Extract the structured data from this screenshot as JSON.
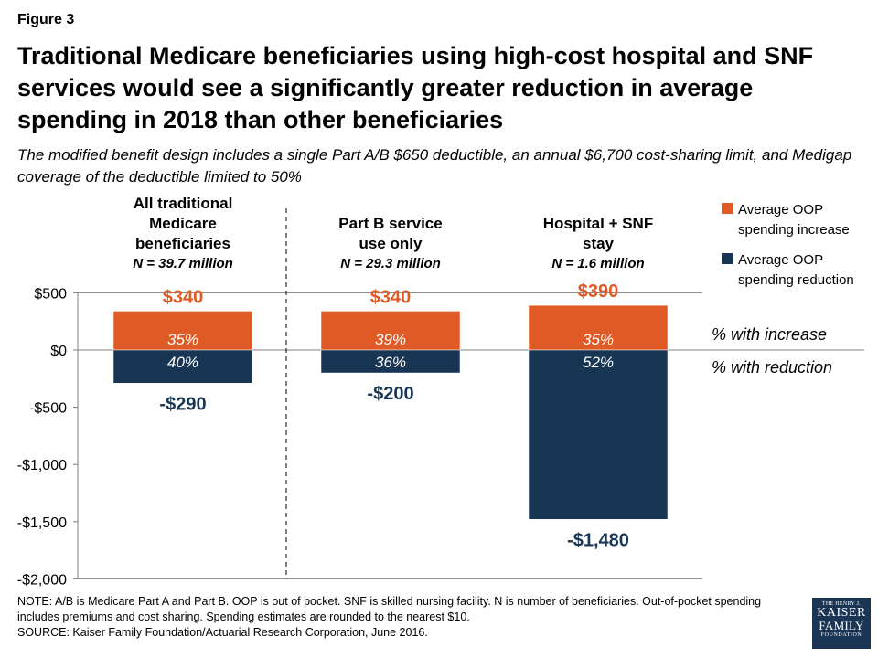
{
  "figure_label": "Figure 3",
  "title": "Traditional Medicare beneficiaries using high-cost hospital and SNF services would see a significantly greater reduction in average spending in 2018 than other beneficiaries",
  "subtitle": "The modified benefit design includes a single Part A/B $650 deductible, an annual $6,700 cost-sharing limit, and Medigap coverage of the deductible limited to 50%",
  "note": "NOTE: A/B is Medicare Part A and Part B. OOP is out of pocket. SNF is skilled nursing facility. N is number of beneficiaries. Out-of-pocket spending includes premiums and cost sharing. Spending estimates are rounded to the nearest $10.",
  "source": "SOURCE: Kaiser Family Foundation/Actuarial Research Corporation, June 2016.",
  "logo": {
    "line1": "THE HENRY J.",
    "line2": "KAISER",
    "line3": "FAMILY",
    "line4": "FOUNDATION"
  },
  "colors": {
    "increase": "#e05a26",
    "reduction": "#183554",
    "text": "#000000",
    "axis": "#7f7f7f"
  },
  "chart_data": {
    "type": "bar",
    "stacked": true,
    "categories": [
      {
        "lines": [
          "All traditional",
          "Medicare",
          "beneficiaries"
        ],
        "n": "N = 39.7 million"
      },
      {
        "lines": [
          "Part B service",
          "use only"
        ],
        "n": "N = 29.3 million"
      },
      {
        "lines": [
          "Hospital + SNF",
          "stay"
        ],
        "n": "N = 1.6 million"
      }
    ],
    "series": [
      {
        "name": "Average OOP spending increase",
        "legend_lines": [
          "Average OOP",
          "spending increase"
        ],
        "values": [
          340,
          340,
          390
        ],
        "value_labels": [
          "$340",
          "$340",
          "$390"
        ],
        "pct_labels": [
          "35%",
          "39%",
          "35%"
        ]
      },
      {
        "name": "Average OOP spending reduction",
        "legend_lines": [
          "Average OOP",
          "spending reduction"
        ],
        "values": [
          -290,
          -200,
          -1480
        ],
        "value_labels": [
          "-$290",
          "-$200",
          "-$1,480"
        ],
        "pct_labels": [
          "40%",
          "36%",
          "52%"
        ]
      }
    ],
    "row_annotations": [
      "% with increase",
      "% with reduction"
    ],
    "ylim": [
      -2000,
      500
    ],
    "yticks": [
      500,
      0,
      -500,
      -1000,
      -1500,
      -2000
    ],
    "ytick_labels": [
      "$500",
      "$0",
      "-$500",
      "-$1,000",
      "-$1,500",
      "-$2,000"
    ],
    "legend_position": "top-right",
    "grid": false
  }
}
